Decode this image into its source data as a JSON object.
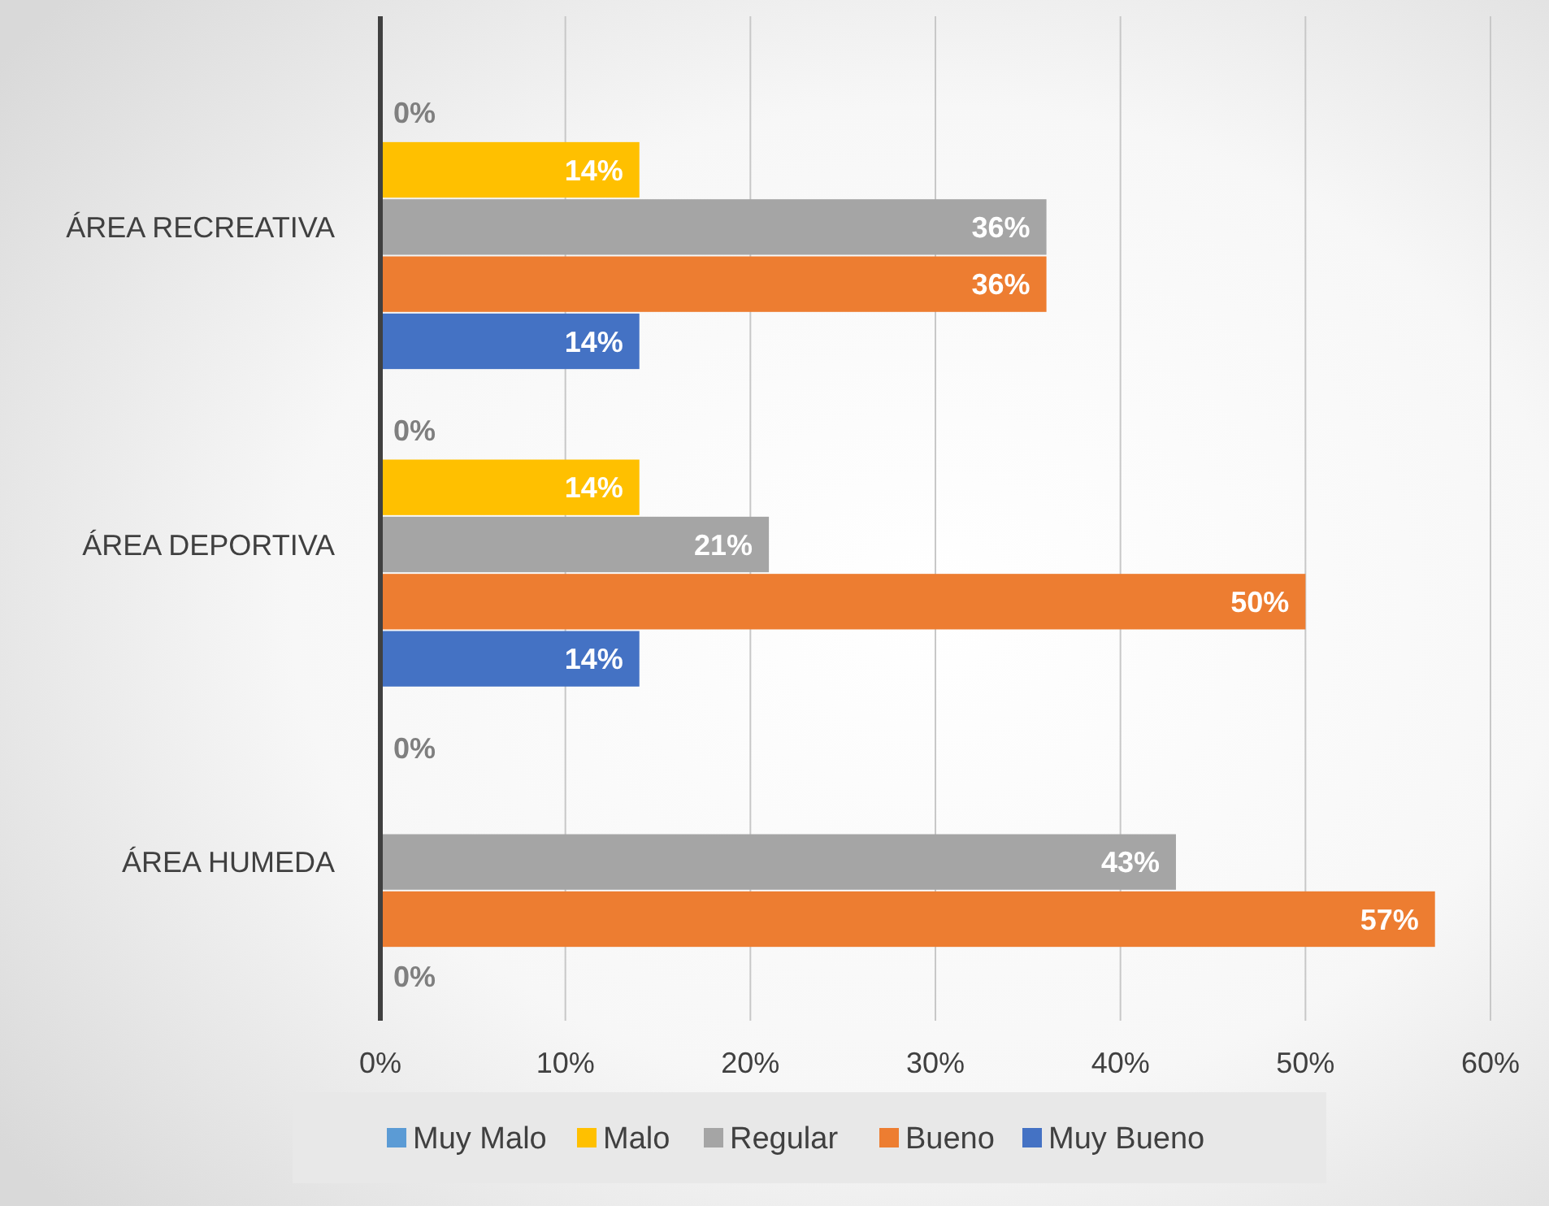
{
  "chart_data": {
    "type": "bar",
    "orientation": "horizontal",
    "categories": [
      "ÁREA RECREATIVA",
      "ÁREA DEPORTIVA",
      "ÁREA HUMEDA"
    ],
    "series": [
      {
        "name": "Muy Malo",
        "color": "#5b9bd5",
        "values": [
          0,
          0,
          0
        ],
        "value_labels": [
          "0%",
          "0%",
          "0%"
        ]
      },
      {
        "name": "Malo",
        "color": "#ffc000",
        "values": [
          14,
          14,
          null
        ],
        "value_labels": [
          "14%",
          "14%",
          null
        ]
      },
      {
        "name": "Regular",
        "color": "#a5a5a5",
        "values": [
          36,
          21,
          43
        ],
        "value_labels": [
          "36%",
          "21%",
          "43%"
        ]
      },
      {
        "name": "Bueno",
        "color": "#ed7d31",
        "values": [
          36,
          50,
          57
        ],
        "value_labels": [
          "36%",
          "50%",
          "57%"
        ]
      },
      {
        "name": "Muy Bueno",
        "color": "#4472c4",
        "values": [
          14,
          14,
          0
        ],
        "value_labels": [
          "14%",
          "14%",
          "0%"
        ]
      }
    ],
    "xlim": [
      0,
      60
    ],
    "xticks": [
      {
        "value": 0,
        "label": "0%"
      },
      {
        "value": 10,
        "label": "10%"
      },
      {
        "value": 20,
        "label": "20%"
      },
      {
        "value": 30,
        "label": "30%"
      },
      {
        "value": 40,
        "label": "40%"
      },
      {
        "value": 50,
        "label": "50%"
      },
      {
        "value": 60,
        "label": "60%"
      }
    ],
    "grid": "x",
    "legend": "bottom"
  }
}
